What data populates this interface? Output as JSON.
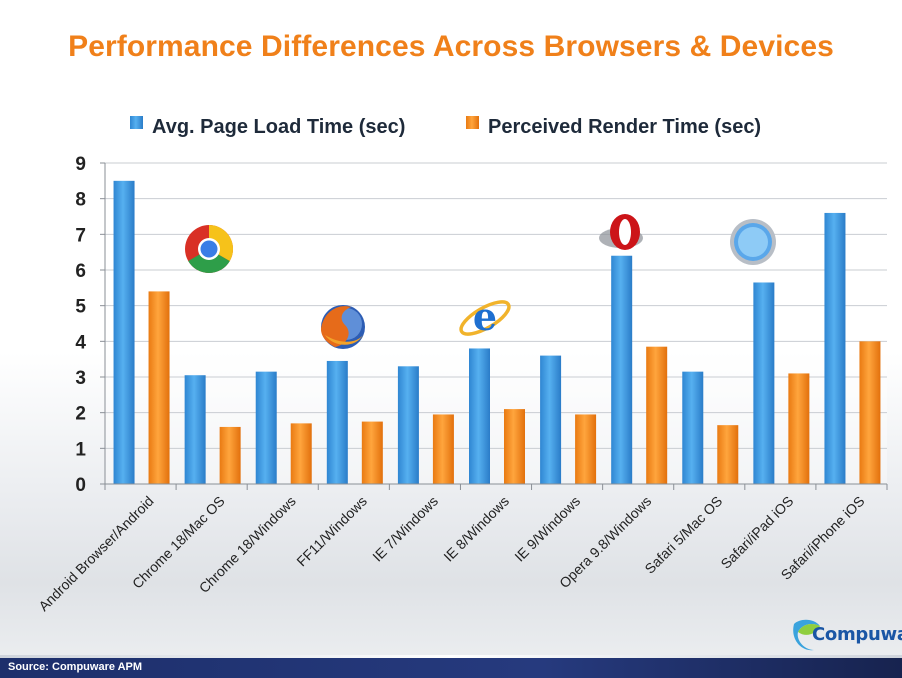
{
  "chart_data": {
    "type": "bar",
    "title": "Performance Differences Across Browsers & Devices",
    "categories": [
      "Android Browser/Android",
      "Chrome 18/Mac OS",
      "Chrome 18/Windows",
      "FF11/Windows",
      "IE 7/Windows",
      "IE 8/Windows",
      "IE 9/Windows",
      "Opera 9.8/Windows",
      "Safari 5/Mac OS",
      "Safari/iPad iOS",
      "Safari/iPhone iOS"
    ],
    "series": [
      {
        "name": "Avg. Page Load Time (sec)",
        "color": "#3d9ae0",
        "values": [
          8.5,
          3.05,
          3.15,
          3.45,
          3.3,
          3.8,
          3.6,
          6.4,
          3.15,
          5.65,
          7.6
        ]
      },
      {
        "name": "Perceived Render Time (sec)",
        "color": "#f28a1e",
        "values": [
          5.4,
          1.6,
          1.7,
          1.75,
          1.95,
          2.1,
          1.95,
          3.85,
          1.65,
          3.1,
          4.0
        ]
      }
    ],
    "yticks": [
      0,
      1,
      2,
      3,
      4,
      5,
      6,
      7,
      8,
      9
    ],
    "ylim": [
      0,
      9
    ],
    "grid": true,
    "legend": "top"
  },
  "footer": {
    "source": "Source: Compuware APM"
  },
  "logo": {
    "text": "Compuware"
  },
  "icons": [
    "chrome-icon",
    "firefox-icon",
    "ie-icon",
    "opera-icon",
    "safari-icon"
  ]
}
